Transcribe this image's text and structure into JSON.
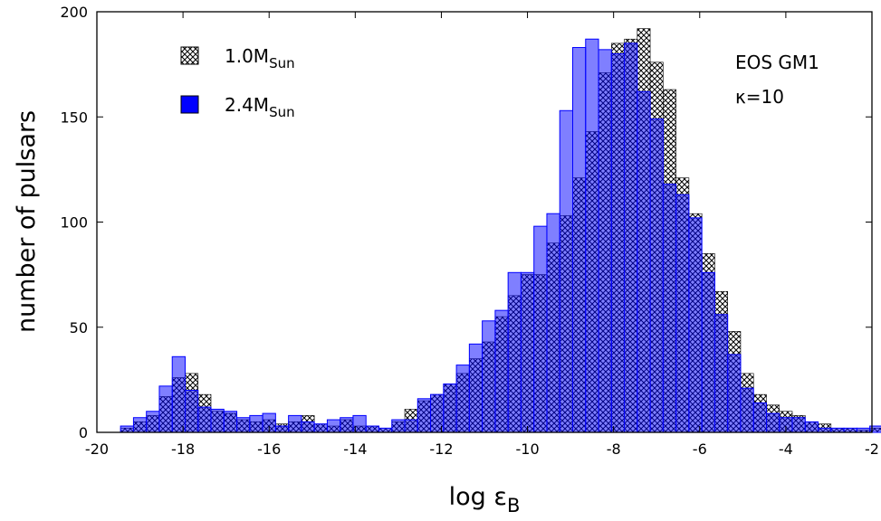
{
  "chart_data": {
    "type": "bar",
    "xlabel": "log ε",
    "xlabel_sub": "B",
    "ylabel": "number of pulsars",
    "xlim": [
      -20,
      -2
    ],
    "ylim": [
      0,
      200
    ],
    "xticks": [
      -20,
      -18,
      -16,
      -14,
      -12,
      -10,
      -8,
      -6,
      -4,
      -2
    ],
    "yticks": [
      0,
      50,
      100,
      150,
      200
    ],
    "bin_width": 0.3,
    "bin_start": -19.45,
    "annotations": [
      "EOS GM1",
      "κ=10"
    ],
    "series": [
      {
        "name": "1.0M",
        "name_sub": "Sun",
        "style": "crosshatch",
        "color": "#555555",
        "values": [
          2,
          5,
          8,
          17,
          26,
          28,
          18,
          10,
          9,
          6,
          5,
          6,
          4,
          5,
          8,
          4,
          3,
          6,
          3,
          3,
          2,
          5,
          11,
          15,
          18,
          23,
          28,
          35,
          43,
          55,
          65,
          75,
          75,
          90,
          103,
          121,
          143,
          171,
          185,
          187,
          192,
          176,
          163,
          121,
          104,
          85,
          67,
          48,
          28,
          18,
          13,
          10,
          8,
          5,
          4,
          2,
          2,
          1,
          2,
          1,
          2,
          1,
          1,
          1,
          1,
          1,
          0,
          0,
          0,
          0,
          0,
          0
        ]
      },
      {
        "name": "2.4M",
        "name_sub": "Sun",
        "style": "solid",
        "color": "#0000ff",
        "values": [
          3,
          7,
          10,
          22,
          36,
          20,
          12,
          11,
          10,
          7,
          8,
          9,
          3,
          8,
          5,
          4,
          6,
          7,
          8,
          3,
          2,
          6,
          6,
          16,
          18,
          23,
          32,
          42,
          53,
          58,
          76,
          76,
          98,
          104,
          153,
          183,
          187,
          182,
          180,
          185,
          162,
          149,
          118,
          113,
          102,
          76,
          56,
          37,
          21,
          14,
          9,
          7,
          7,
          5,
          2,
          2,
          2,
          2,
          3,
          3,
          1,
          2,
          3,
          3,
          2,
          0,
          0,
          0,
          1,
          1,
          0,
          0
        ]
      }
    ]
  }
}
